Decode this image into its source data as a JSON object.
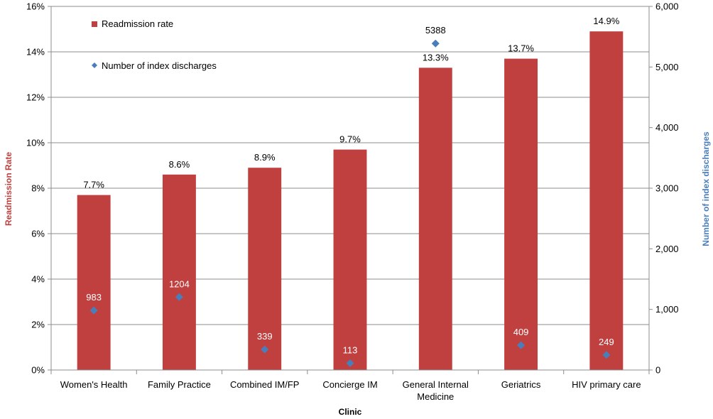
{
  "chart_data": {
    "type": "bar",
    "categories": [
      "Women's Health",
      "Family Practice",
      "Combined IM/FP",
      "Concierge IM",
      "General Internal Medicine",
      "Geriatrics",
      "HIV primary care"
    ],
    "xlabel": "Clinic",
    "y_left": {
      "label": "Readmission Rate",
      "range": [
        0,
        16
      ],
      "ticks": [
        "0%",
        "2%",
        "4%",
        "6%",
        "8%",
        "10%",
        "12%",
        "14%",
        "16%"
      ]
    },
    "y_right": {
      "label": "Number of index discharges",
      "range": [
        0,
        6000
      ],
      "ticks": [
        "0",
        "1,000",
        "2,000",
        "3,000",
        "4,000",
        "5,000",
        "6,000"
      ]
    },
    "series": [
      {
        "name": "Readmission rate",
        "kind": "bar",
        "axis": "left",
        "color": "#c0403f",
        "values": [
          7.7,
          8.6,
          8.9,
          9.7,
          13.3,
          13.7,
          14.9
        ],
        "labels": [
          "7.7%",
          "8.6%",
          "8.9%",
          "9.7%",
          "13.3%",
          "13.7%",
          "14.9%"
        ]
      },
      {
        "name": "Number of index discharges",
        "kind": "scatter",
        "marker": "diamond",
        "axis": "right",
        "color": "#4a7ebb",
        "values": [
          983,
          1204,
          339,
          113,
          5388,
          409,
          249
        ],
        "labels": [
          "983",
          "1204",
          "339",
          "113",
          "5388",
          "409",
          "249"
        ]
      }
    ],
    "legend": "top-left",
    "grid": true,
    "axis_title_colors": {
      "left": "#c0403f",
      "right": "#4a7ebb",
      "x": "#000000"
    }
  }
}
